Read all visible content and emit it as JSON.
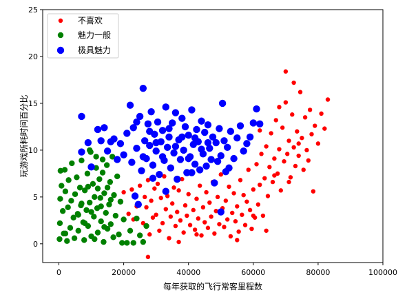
{
  "chart_data": {
    "type": "scatter",
    "title": "",
    "xlabel": "每年获取的飞行常客里程数",
    "ylabel": "玩游戏所耗时间百分比",
    "xlim": [
      -5000,
      100000
    ],
    "ylim": [
      -2,
      25
    ],
    "xticks": [
      0,
      20000,
      40000,
      60000,
      80000,
      100000
    ],
    "yticks": [
      0,
      5,
      10,
      15,
      20,
      25
    ],
    "grid": false,
    "legend_position": "upper-left",
    "series": [
      {
        "name": "不喜欢",
        "color": "#ff0000",
        "marker_size": "small",
        "points": [
          [
            20000,
            5.5
          ],
          [
            21500,
            3.2
          ],
          [
            22500,
            5.8
          ],
          [
            23000,
            2.6
          ],
          [
            24000,
            4.0
          ],
          [
            25000,
            6.2
          ],
          [
            26000,
            2.2
          ],
          [
            26500,
            5.0
          ],
          [
            27000,
            3.9
          ],
          [
            27500,
            6.8
          ],
          [
            28000,
            1.0
          ],
          [
            28500,
            4.6
          ],
          [
            29000,
            2.8
          ],
          [
            29500,
            5.9
          ],
          [
            30000,
            3.1
          ],
          [
            30500,
            6.4
          ],
          [
            31000,
            1.4
          ],
          [
            31500,
            4.9
          ],
          [
            32000,
            2.2
          ],
          [
            32500,
            7.2
          ],
          [
            33000,
            3.7
          ],
          [
            33500,
            5.1
          ],
          [
            34000,
            0.6
          ],
          [
            34500,
            2.9
          ],
          [
            35000,
            4.3
          ],
          [
            35500,
            6.0
          ],
          [
            36000,
            1.9
          ],
          [
            36500,
            3.4
          ],
          [
            37000,
            5.7
          ],
          [
            37500,
            2.5
          ],
          [
            38000,
            6.9
          ],
          [
            38500,
            1.2
          ],
          [
            39000,
            4.1
          ],
          [
            39500,
            3.0
          ],
          [
            40000,
            5.3
          ],
          [
            40500,
            2.0
          ],
          [
            41000,
            7.7
          ],
          [
            41500,
            3.6
          ],
          [
            42000,
            1.5
          ],
          [
            42500,
            4.8
          ],
          [
            43000,
            2.7
          ],
          [
            43500,
            6.2
          ],
          [
            44000,
            0.9
          ],
          [
            44500,
            3.9
          ],
          [
            45000,
            2.3
          ],
          [
            45500,
            5.5
          ],
          [
            46000,
            1.7
          ],
          [
            46500,
            4.4
          ],
          [
            47000,
            2.9
          ],
          [
            47500,
            6.6
          ],
          [
            48000,
            1.1
          ],
          [
            48500,
            3.5
          ],
          [
            49000,
            5.0
          ],
          [
            49500,
            2.1
          ],
          [
            50000,
            7.4
          ],
          [
            50500,
            3.8
          ],
          [
            51000,
            1.8
          ],
          [
            51500,
            4.6
          ],
          [
            52000,
            2.6
          ],
          [
            52500,
            6.1
          ],
          [
            53000,
            0.8
          ],
          [
            53500,
            3.3
          ],
          [
            54000,
            5.4
          ],
          [
            54500,
            2.4
          ],
          [
            55000,
            4.0
          ],
          [
            55500,
            1.3
          ],
          [
            56000,
            6.8
          ],
          [
            56500,
            3.1
          ],
          [
            57000,
            5.2
          ],
          [
            57500,
            2.0
          ],
          [
            58000,
            4.5
          ],
          [
            58500,
            7.9
          ],
          [
            59000,
            3.6
          ],
          [
            59500,
            1.6
          ],
          [
            60000,
            5.8
          ],
          [
            60500,
            2.8
          ],
          [
            61000,
            8.5
          ],
          [
            61500,
            4.2
          ],
          [
            62000,
            6.3
          ],
          [
            62500,
            9.6
          ],
          [
            63000,
            3.0
          ],
          [
            63500,
            7.0
          ],
          [
            64000,
            10.4
          ],
          [
            64500,
            5.1
          ],
          [
            65000,
            8.2
          ],
          [
            65500,
            11.8
          ],
          [
            66000,
            6.6
          ],
          [
            66500,
            9.1
          ],
          [
            67000,
            13.2
          ],
          [
            67500,
            7.5
          ],
          [
            68000,
            10.1
          ],
          [
            68500,
            5.7
          ],
          [
            69000,
            12.4
          ],
          [
            69500,
            8.8
          ],
          [
            70000,
            15.1
          ],
          [
            70500,
            9.6
          ],
          [
            71000,
            11.0
          ],
          [
            71500,
            7.1
          ],
          [
            72000,
            13.8
          ],
          [
            72500,
            10.3
          ],
          [
            73000,
            8.3
          ],
          [
            73500,
            12.0
          ],
          [
            74000,
            9.4
          ],
          [
            74500,
            16.2
          ],
          [
            75000,
            11.3
          ],
          [
            75500,
            7.9
          ],
          [
            76000,
            13.5
          ],
          [
            76500,
            10.0
          ],
          [
            77000,
            8.9
          ],
          [
            77500,
            14.3
          ],
          [
            78000,
            11.7
          ],
          [
            79000,
            12.6
          ],
          [
            80000,
            10.7
          ],
          [
            81000,
            13.9
          ],
          [
            82000,
            12.3
          ],
          [
            83000,
            15.4
          ],
          [
            27500,
            -1.4
          ],
          [
            37000,
            0.2
          ],
          [
            42500,
            1.0
          ],
          [
            55000,
            0.4
          ],
          [
            64000,
            1.4
          ],
          [
            70000,
            18.4
          ],
          [
            72500,
            17.2
          ],
          [
            60000,
            3.0
          ],
          [
            66500,
            7.3
          ],
          [
            78500,
            5.6
          ],
          [
            68000,
            14.6
          ],
          [
            74000,
            10.7
          ],
          [
            71000,
            6.6
          ],
          [
            62000,
            12.1
          ]
        ]
      },
      {
        "name": "魅力一般",
        "color": "#008000",
        "marker_size": "small",
        "points": [
          [
            200,
            0.5
          ],
          [
            300,
            2.2
          ],
          [
            400,
            4.8
          ],
          [
            500,
            7.8
          ],
          [
            800,
            6.2
          ],
          [
            1200,
            3.5
          ],
          [
            1500,
            1.1
          ],
          [
            1800,
            7.9
          ],
          [
            2000,
            5.6
          ],
          [
            2500,
            0.3
          ],
          [
            2800,
            3.9
          ],
          [
            3000,
            6.8
          ],
          [
            3500,
            1.7
          ],
          [
            3800,
            4.6
          ],
          [
            4000,
            8.6
          ],
          [
            4500,
            2.8
          ],
          [
            4800,
            0.6
          ],
          [
            5000,
            5.3
          ],
          [
            5500,
            7.1
          ],
          [
            5800,
            3.2
          ],
          [
            6000,
            1.4
          ],
          [
            6500,
            6.0
          ],
          [
            6800,
            4.1
          ],
          [
            7000,
            8.9
          ],
          [
            7500,
            2.3
          ],
          [
            7800,
            0.4
          ],
          [
            8000,
            5.7
          ],
          [
            8500,
            3.6
          ],
          [
            8800,
            7.5
          ],
          [
            9000,
            1.9
          ],
          [
            9500,
            4.4
          ],
          [
            9800,
            9.8
          ],
          [
            10000,
            0.8
          ],
          [
            10500,
            6.4
          ],
          [
            10800,
            2.9
          ],
          [
            11000,
            5.0
          ],
          [
            11500,
            8.1
          ],
          [
            11800,
            3.8
          ],
          [
            12000,
            1.2
          ],
          [
            12500,
            6.9
          ],
          [
            12800,
            4.9
          ],
          [
            13000,
            2.4
          ],
          [
            13500,
            7.6
          ],
          [
            13800,
            0.2
          ],
          [
            14000,
            5.4
          ],
          [
            14500,
            3.3
          ],
          [
            14800,
            8.4
          ],
          [
            15000,
            1.6
          ],
          [
            15500,
            4.2
          ],
          [
            15800,
            6.6
          ],
          [
            16000,
            2.1
          ],
          [
            16500,
            9.3
          ],
          [
            16800,
            0.7
          ],
          [
            17000,
            5.2
          ],
          [
            17500,
            3.0
          ],
          [
            18000,
            7.2
          ],
          [
            18500,
            1.0
          ],
          [
            19000,
            4.5
          ],
          [
            19500,
            0.1
          ],
          [
            20000,
            2.6
          ],
          [
            21000,
            0.1
          ],
          [
            22000,
            1.4
          ],
          [
            23000,
            0.1
          ],
          [
            24000,
            2.7
          ],
          [
            25000,
            0.9
          ],
          [
            26000,
            0.2
          ],
          [
            27000,
            1.9
          ],
          [
            6000,
            3.1
          ],
          [
            7000,
            4.3
          ],
          [
            8000,
            2.2
          ],
          [
            9000,
            6.1
          ],
          [
            10000,
            3.4
          ],
          [
            11000,
            0.5
          ],
          [
            12000,
            5.9
          ],
          [
            13000,
            4.0
          ],
          [
            14000,
            1.8
          ],
          [
            15000,
            6.0
          ],
          [
            16000,
            4.7
          ],
          [
            9500,
            10.0
          ],
          [
            11500,
            9.3
          ],
          [
            13500,
            9.0
          ],
          [
            2000,
            1.1
          ]
        ]
      },
      {
        "name": "极具魅力",
        "color": "#0000ff",
        "marker_size": "large",
        "points": [
          [
            7000,
            9.8
          ],
          [
            7000,
            13.6
          ],
          [
            9000,
            10.8
          ],
          [
            10000,
            8.2
          ],
          [
            12000,
            12.2
          ],
          [
            13000,
            11.0
          ],
          [
            14000,
            12.4
          ],
          [
            15000,
            9.9
          ],
          [
            16000,
            10.9
          ],
          [
            17000,
            11.2
          ],
          [
            18000,
            9.0
          ],
          [
            19000,
            10.7
          ],
          [
            20000,
            9.5
          ],
          [
            21000,
            11.8
          ],
          [
            22000,
            14.8
          ],
          [
            22500,
            8.7
          ],
          [
            23000,
            12.4
          ],
          [
            24000,
            10.2
          ],
          [
            25000,
            13.6
          ],
          [
            25500,
            7.8
          ],
          [
            26000,
            16.6
          ],
          [
            26500,
            11.0
          ],
          [
            27000,
            9.1
          ],
          [
            27500,
            12.8
          ],
          [
            28000,
            10.5
          ],
          [
            28500,
            14.1
          ],
          [
            29000,
            8.4
          ],
          [
            29500,
            11.7
          ],
          [
            30000,
            9.9
          ],
          [
            30500,
            13.0
          ],
          [
            31000,
            7.4
          ],
          [
            31500,
            10.9
          ],
          [
            32000,
            12.1
          ],
          [
            32500,
            8.9
          ],
          [
            33000,
            14.6
          ],
          [
            33500,
            10.3
          ],
          [
            34000,
            11.4
          ],
          [
            34500,
            8.1
          ],
          [
            35000,
            12.9
          ],
          [
            35500,
            9.7
          ],
          [
            36000,
            14.0
          ],
          [
            36500,
            6.9
          ],
          [
            37000,
            11.1
          ],
          [
            37500,
            9.0
          ],
          [
            38000,
            13.4
          ],
          [
            38500,
            10.0
          ],
          [
            39000,
            12.5
          ],
          [
            39500,
            7.6
          ],
          [
            40000,
            11.6
          ],
          [
            40500,
            9.3
          ],
          [
            41000,
            14.3
          ],
          [
            41500,
            10.6
          ],
          [
            42000,
            8.5
          ],
          [
            42500,
            12.2
          ],
          [
            43000,
            10.9
          ],
          [
            43500,
            7.9
          ],
          [
            44000,
            13.1
          ],
          [
            44500,
            9.6
          ],
          [
            45000,
            11.9
          ],
          [
            45500,
            8.3
          ],
          [
            46000,
            12.7
          ],
          [
            46500,
            10.2
          ],
          [
            47000,
            9.0
          ],
          [
            47500,
            11.4
          ],
          [
            48000,
            6.5
          ],
          [
            48500,
            10.8
          ],
          [
            49000,
            8.8
          ],
          [
            49500,
            12.3
          ],
          [
            50000,
            9.4
          ],
          [
            50500,
            15.0
          ],
          [
            51000,
            11.0
          ],
          [
            51500,
            7.7
          ],
          [
            52000,
            10.3
          ],
          [
            52500,
            8.1
          ],
          [
            53000,
            12.0
          ],
          [
            54000,
            9.1
          ],
          [
            55000,
            11.3
          ],
          [
            56000,
            12.6
          ],
          [
            57000,
            9.9
          ],
          [
            58000,
            10.7
          ],
          [
            59000,
            11.4
          ],
          [
            60000,
            12.9
          ],
          [
            61000,
            14.4
          ],
          [
            62000,
            12.8
          ],
          [
            24000,
            13.0
          ],
          [
            26000,
            9.3
          ],
          [
            28000,
            12.0
          ],
          [
            30000,
            10.8
          ],
          [
            32000,
            9.3
          ],
          [
            34000,
            12.3
          ],
          [
            36000,
            10.4
          ],
          [
            38000,
            11.4
          ],
          [
            40000,
            9.1
          ],
          [
            42000,
            11.3
          ],
          [
            44000,
            10.1
          ],
          [
            46000,
            10.8
          ],
          [
            24500,
            4.2
          ],
          [
            33000,
            5.6
          ],
          [
            50000,
            3.4
          ],
          [
            23500,
            5.1
          ],
          [
            29000,
            7.0
          ],
          [
            41000,
            7.6
          ]
        ]
      }
    ]
  }
}
